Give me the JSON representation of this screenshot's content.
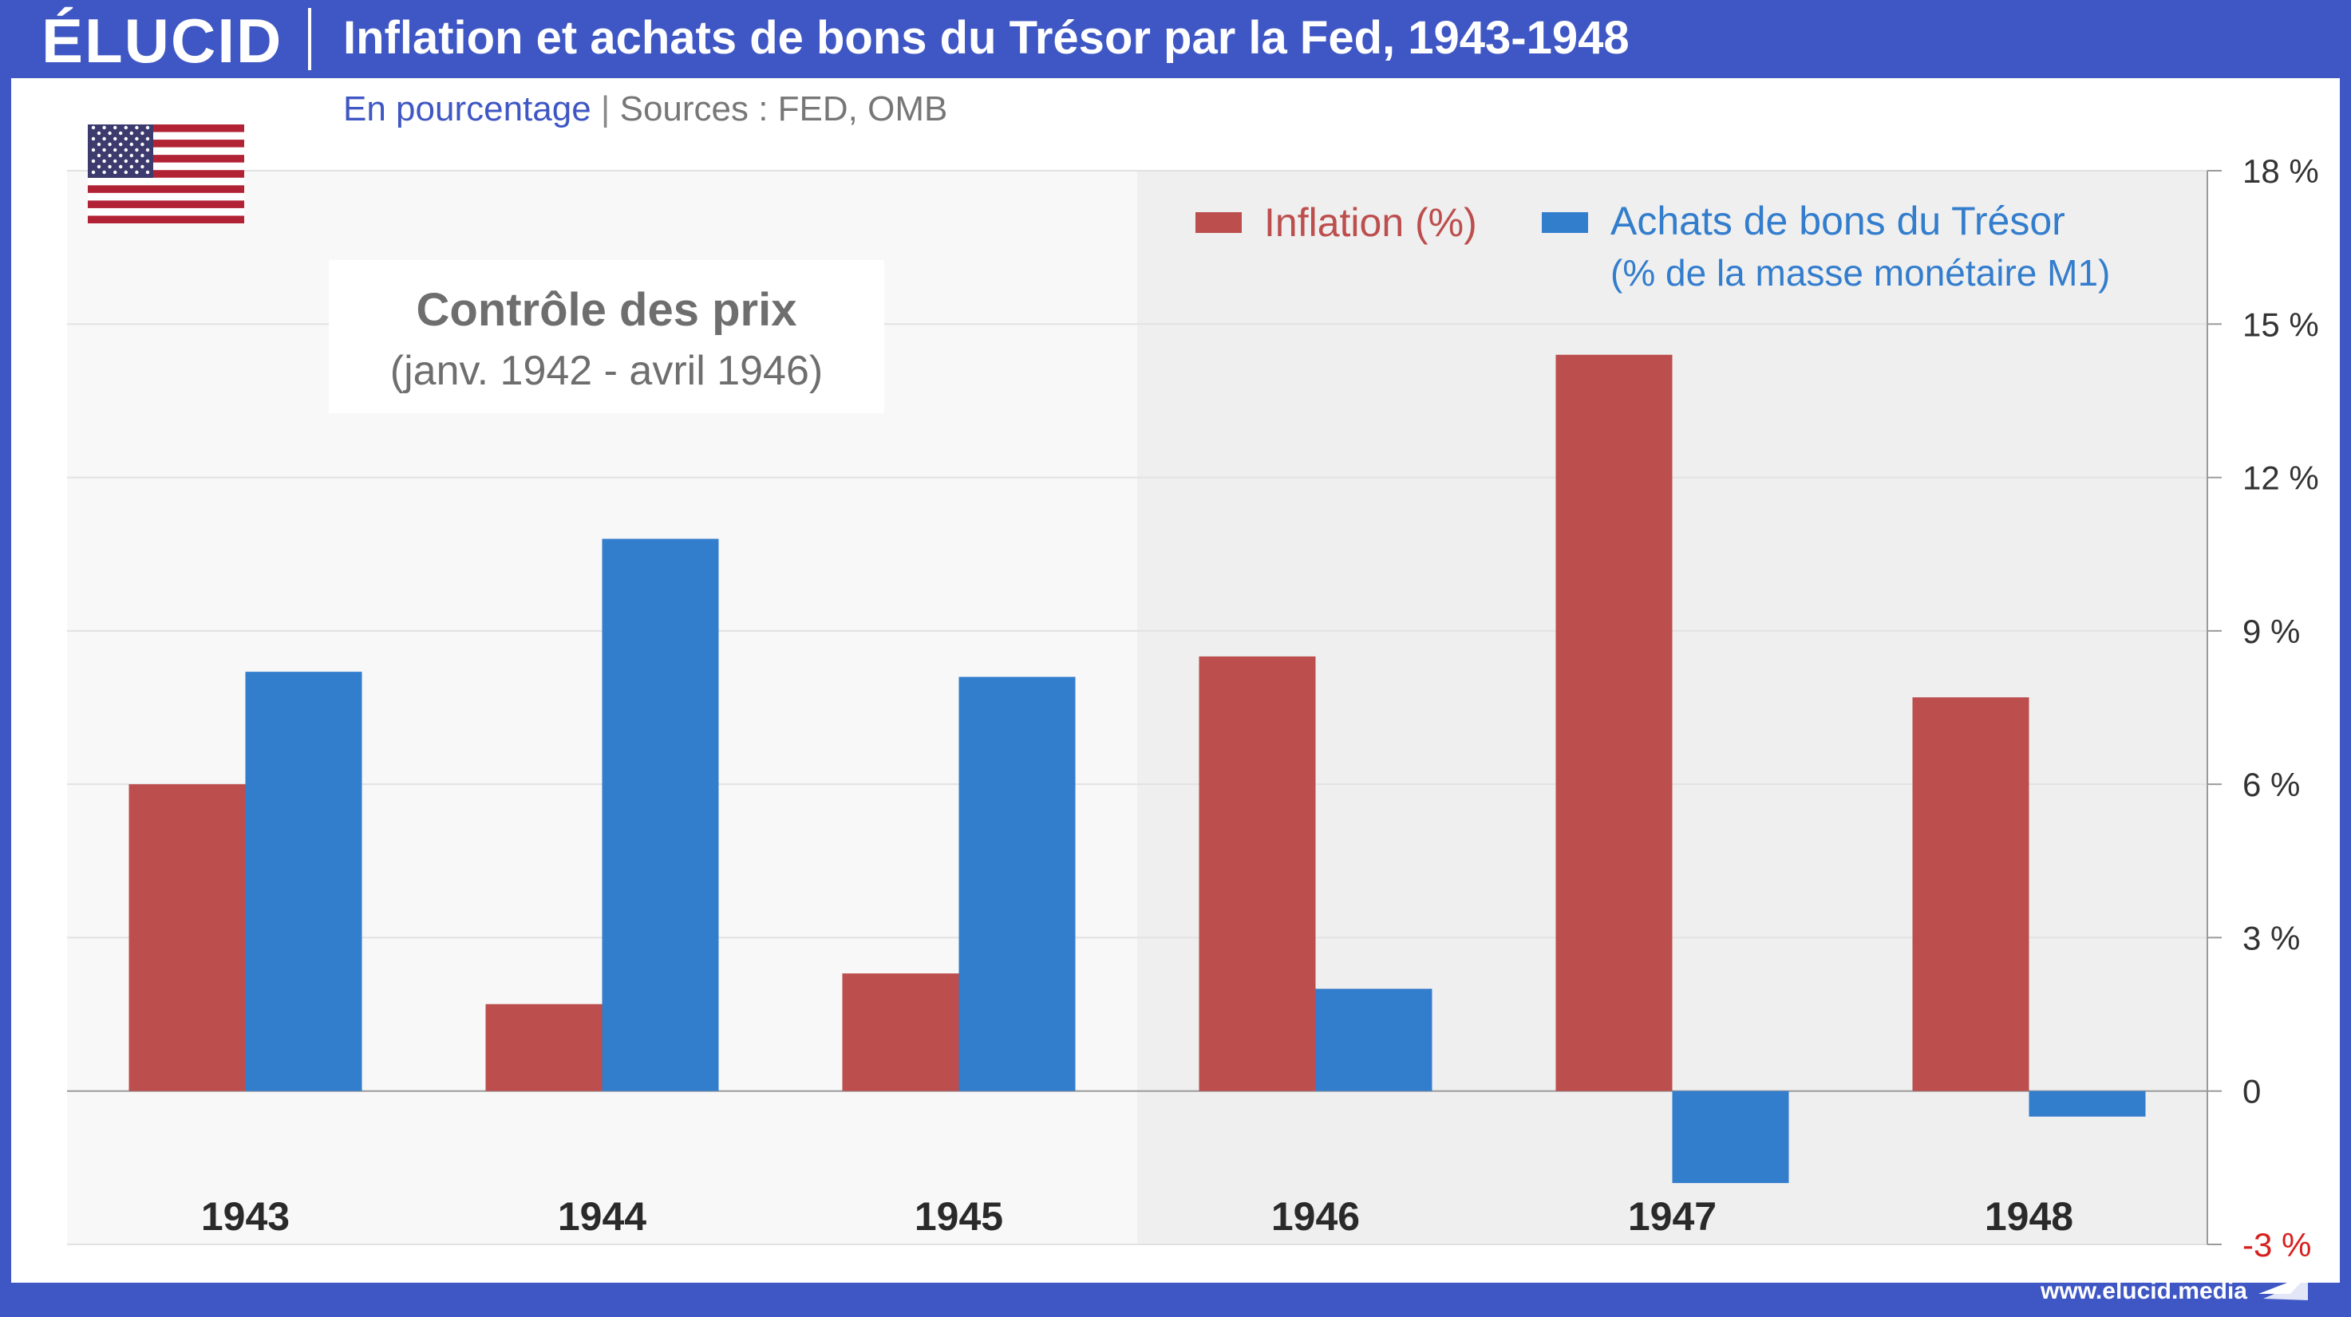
{
  "brand": {
    "logo": "ÉLUCID",
    "url": "www.elucid.media"
  },
  "header": {
    "title": "Inflation et achats de bons du Trésor par la Fed, 1943-1948",
    "subtitle_unit": "En pourcentage",
    "subtitle_separator": "|",
    "subtitle_sources": "Sources : FED, OMB"
  },
  "icons": {
    "flag": "us-flag-icon",
    "brand_mark": "elucid-arrow-icon"
  },
  "annotation": {
    "title": "Contrôle des prix",
    "subtitle": "(janv. 1942 - avril 1946)"
  },
  "colors": {
    "header_bg": "#3f57c4",
    "inflation": "#bc4e4d",
    "treasury": "#337dcd",
    "shade_price_control": "#f8f8f8",
    "shade_after": "#efefef",
    "negative_tick": "#d62020"
  },
  "chart_data": {
    "type": "bar",
    "categories": [
      "1943",
      "1944",
      "1945",
      "1946",
      "1947",
      "1948"
    ],
    "series": [
      {
        "name": "Inflation (%)",
        "values": [
          6.0,
          1.7,
          2.3,
          8.5,
          14.4,
          7.7
        ]
      },
      {
        "name": "Achats de bons du Trésor",
        "name_line2": "(% de la masse monétaire M1)",
        "values": [
          8.2,
          10.8,
          8.1,
          2.0,
          -1.8,
          -0.5
        ]
      }
    ],
    "ylim": [
      -3,
      18
    ],
    "yticks": [
      18,
      15,
      12,
      9,
      6,
      3,
      0,
      -3
    ],
    "ytick_labels": [
      "18 %",
      "15 %",
      "12 %",
      "9 %",
      "6 %",
      "3 %",
      "0",
      "-3 %"
    ],
    "shaded_periods": [
      {
        "label": "Contrôle des prix",
        "from_index": 0,
        "to_index": 2
      },
      {
        "label": "",
        "from_index": 3,
        "to_index": 5
      }
    ],
    "grid": true,
    "legend_position": "top-right",
    "yaxis_side": "right"
  }
}
